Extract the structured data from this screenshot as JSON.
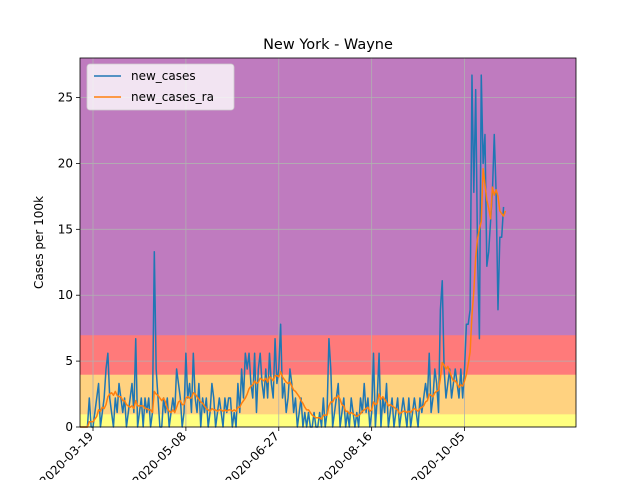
{
  "chart_data": {
    "type": "line",
    "title": "New York - Wayne",
    "xlabel": "",
    "ylabel": "Cases per 100k",
    "x_start": "2020-03-12",
    "x_end": "2020-11-28",
    "xlim": [
      "2020-03-12",
      "2020-12-04"
    ],
    "ylim": [
      0,
      28
    ],
    "y_ticks": [
      0,
      5,
      10,
      15,
      20,
      25
    ],
    "x_ticks": [
      "2020-03-19",
      "2020-05-08",
      "2020-06-27",
      "2020-08-16",
      "2020-10-05"
    ],
    "grid": true,
    "legend_position": "upper left",
    "risk_bands": [
      {
        "from": 0,
        "to": 1,
        "color": "#ffff80"
      },
      {
        "from": 1,
        "to": 4,
        "color": "#ffd280"
      },
      {
        "from": 4,
        "to": 7,
        "color": "#ff7a7a"
      },
      {
        "from": 7,
        "to": 28,
        "color": "#bf7bbf"
      }
    ],
    "series": [
      {
        "name": "new_cases",
        "color": "#1f77b4",
        "values": [
          0,
          0,
          0,
          0,
          0,
          2.2,
          0,
          0,
          1.1,
          2.2,
          3.3,
          0,
          1.1,
          2.2,
          4.4,
          5.6,
          2.2,
          1.1,
          0,
          2.2,
          1.1,
          3.3,
          2.2,
          1.1,
          2.2,
          0,
          1.1,
          2.2,
          3.3,
          1.1,
          6.7,
          0,
          1.1,
          2.2,
          0,
          2.2,
          1.1,
          2.2,
          0,
          1.1,
          13.3,
          4.4,
          2.2,
          0,
          0,
          2.2,
          1.1,
          2.2,
          0,
          1.1,
          2.2,
          1.1,
          4.4,
          3.3,
          2.2,
          0,
          1.1,
          5.6,
          2.2,
          3.3,
          1.1,
          5.6,
          2.2,
          1.1,
          3.3,
          0,
          2.2,
          1.1,
          2.2,
          0,
          1.1,
          3.3,
          2.2,
          0,
          1.1,
          2.2,
          1.1,
          0,
          2.2,
          1.1,
          2.2,
          2.2,
          0,
          1.1,
          0,
          3.3,
          1.1,
          4.4,
          2.2,
          5.6,
          4.4,
          5.6,
          3.3,
          2.2,
          5.6,
          1.1,
          4.4,
          5.6,
          3.3,
          2.2,
          4.4,
          2.2,
          5.6,
          3.3,
          2.2,
          6.7,
          3.3,
          4.4,
          7.8,
          2.2,
          3.3,
          1.1,
          2.2,
          4.4,
          3.3,
          1.1,
          2.2,
          0,
          1.1,
          2.2,
          0,
          1.1,
          0,
          1.1,
          0,
          0,
          1.1,
          0,
          0,
          1.1,
          0,
          2.2,
          0,
          1.1,
          6.7,
          4.4,
          0,
          1.1,
          2.2,
          3.3,
          0,
          1.1,
          2.2,
          0,
          1.1,
          0,
          2.2,
          1.1,
          0,
          1.1,
          0,
          2.2,
          1.1,
          3.3,
          1.1,
          2.2,
          0,
          1.1,
          5.6,
          0,
          2.2,
          5.6,
          0,
          2.2,
          1.1,
          3.3,
          0,
          1.1,
          2.2,
          0,
          1.1,
          2.2,
          0,
          1.1,
          2.2,
          1.1,
          0,
          2.2,
          0,
          1.1,
          2.2,
          1.1,
          0,
          2.2,
          1.1,
          2.2,
          3.3,
          2.2,
          5.6,
          1.1,
          2.2,
          4.4,
          3.3,
          1.1,
          8.9,
          11.1,
          4.4,
          2.2,
          3.3,
          4.4,
          2.2,
          3.3,
          4.4,
          3.3,
          2.2,
          4.4,
          2.2,
          4.4,
          7.8,
          7.8,
          8.9,
          26.7,
          17.8,
          25.6,
          13.3,
          6.7,
          26.7,
          20.0,
          22.2,
          12.2,
          13.3,
          15.6,
          17.8,
          22.2,
          17.8,
          8.9,
          14.4,
          14.4,
          16.7
        ]
      },
      {
        "name": "new_cases_ra",
        "color": "#ff7f0e",
        "values": [
          0,
          0,
          0,
          0,
          0,
          0.4,
          0.4,
          0.4,
          0.6,
          0.8,
          1.3,
          1.2,
          1.5,
          1.4,
          1.7,
          2.3,
          2.5,
          2.6,
          2.4,
          2.7,
          2.4,
          2.3,
          2.3,
          2.0,
          2.0,
          1.7,
          1.6,
          1.5,
          1.6,
          1.4,
          2.0,
          1.6,
          1.6,
          1.6,
          1.6,
          1.4,
          1.4,
          1.3,
          1.3,
          1.1,
          2.7,
          2.5,
          2.4,
          2.2,
          2.0,
          2.2,
          1.9,
          1.4,
          1.2,
          1.1,
          1.3,
          1.1,
          1.5,
          1.9,
          2.0,
          1.7,
          1.7,
          2.2,
          2.3,
          2.2,
          2.2,
          2.6,
          2.5,
          2.3,
          2.1,
          1.9,
          1.8,
          1.6,
          1.4,
          1.3,
          1.2,
          1.4,
          1.3,
          1.3,
          1.2,
          1.3,
          1.3,
          1.2,
          1.3,
          1.2,
          1.3,
          1.3,
          1.2,
          1.3,
          1.2,
          1.5,
          1.5,
          1.8,
          2.0,
          2.2,
          2.5,
          2.9,
          3.1,
          3.2,
          3.5,
          3.3,
          3.4,
          3.7,
          3.6,
          3.5,
          3.7,
          3.4,
          3.8,
          3.7,
          3.5,
          3.9,
          3.9,
          3.8,
          4.2,
          3.8,
          3.6,
          3.4,
          3.3,
          3.4,
          3.1,
          2.8,
          2.7,
          2.5,
          2.3,
          2.0,
          1.8,
          1.5,
          1.3,
          1.3,
          1.1,
          0.9,
          0.8,
          0.7,
          0.7,
          0.7,
          0.6,
          0.9,
          0.9,
          0.9,
          1.6,
          1.9,
          1.9,
          2.2,
          2.2,
          2.4,
          2.1,
          1.7,
          1.6,
          1.2,
          1.2,
          1.0,
          1.1,
          1.0,
          0.9,
          0.8,
          0.9,
          1.0,
          1.2,
          1.3,
          1.4,
          1.5,
          1.2,
          1.3,
          1.9,
          1.7,
          1.8,
          2.5,
          2.1,
          2.3,
          2.1,
          1.9,
          1.6,
          1.7,
          1.6,
          1.5,
          1.4,
          1.3,
          1.0,
          1.1,
          1.2,
          1.2,
          1.1,
          1.2,
          1.1,
          1.3,
          1.4,
          1.3,
          1.2,
          1.4,
          1.5,
          1.6,
          1.9,
          2.0,
          2.5,
          2.4,
          2.3,
          2.6,
          2.7,
          2.8,
          3.7,
          4.9,
          4.7,
          4.4,
          4.6,
          4.2,
          3.8,
          3.5,
          3.5,
          3.3,
          3.0,
          3.2,
          3.1,
          3.5,
          4.0,
          4.8,
          5.7,
          8.5,
          10.3,
          12.9,
          14.3,
          15.0,
          15.6,
          19.6,
          18.4,
          17.2,
          16.6,
          15.8,
          18.2,
          17.6,
          18.0,
          17.5,
          16.4,
          16.2,
          16.0,
          16.4
        ]
      }
    ]
  }
}
